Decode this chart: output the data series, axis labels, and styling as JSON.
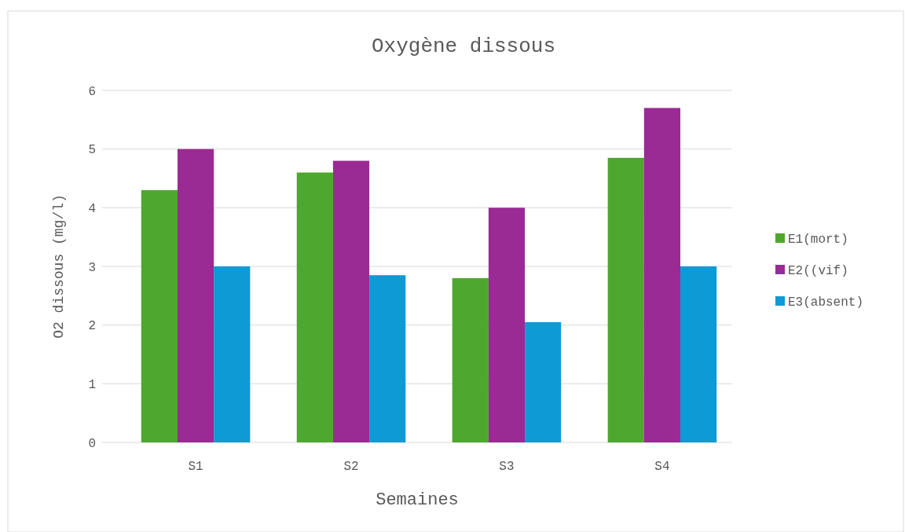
{
  "chart_data": {
    "type": "bar",
    "title": "Oxygène dissous",
    "xlabel": "Semaines",
    "ylabel": "O2 dissous  (mg/l)",
    "categories": [
      "S1",
      "S2",
      "S3",
      "S4"
    ],
    "series": [
      {
        "name": "E1(mort)",
        "color": "#4ea72e",
        "values": [
          4.3,
          4.6,
          2.8,
          4.85
        ]
      },
      {
        "name": "E2((vif)",
        "color": "#9a2a94",
        "values": [
          5.0,
          4.8,
          4.0,
          5.7
        ]
      },
      {
        "name": "E3(absent)",
        "color": "#0e9ad5",
        "values": [
          3.0,
          2.85,
          2.05,
          3.0
        ]
      }
    ],
    "ylim": [
      0,
      6
    ],
    "yticks": [
      0,
      1,
      2,
      3,
      4,
      5,
      6
    ],
    "grid": "y",
    "legend": "right"
  }
}
